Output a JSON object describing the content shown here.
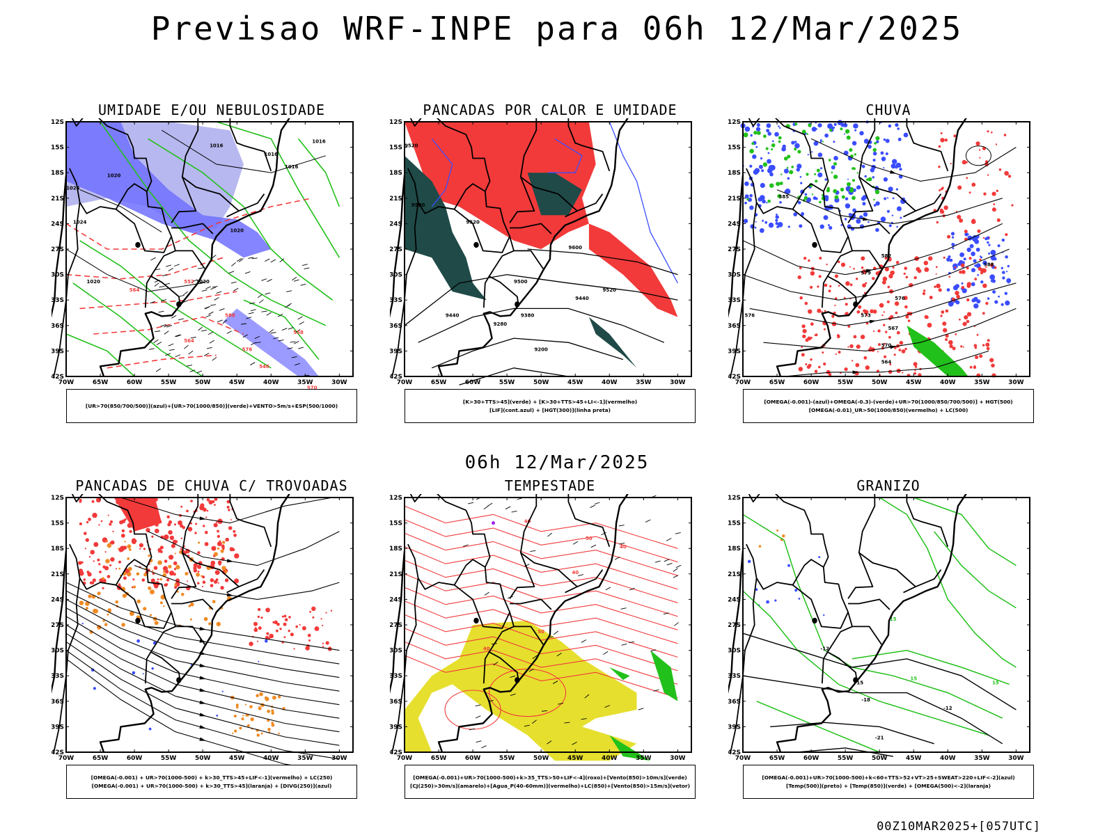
{
  "title": "Previsao WRF-INPE  para 06h 12/Mar/2025",
  "mid_title": "06h 12/Mar/2025",
  "run_stamp": "00Z10MAR2025+[057UTC]",
  "axes": {
    "lat_labels": [
      "12S",
      "15S",
      "18S",
      "21S",
      "24S",
      "27S",
      "30S",
      "33S",
      "36S",
      "39S",
      "42S"
    ],
    "lon_labels": [
      "70W",
      "65W",
      "60W",
      "55W",
      "50W",
      "45W",
      "40W",
      "35W",
      "30W"
    ]
  },
  "colors": {
    "blue": "#3a4dff",
    "lightblue": "#b8b8f0",
    "midblue": "#7070ff",
    "green": "#22c01a",
    "red": "#f23a3a",
    "darkteal": "#1f4a48",
    "orange": "#f08a24",
    "yellow": "#e6df2e",
    "purple": "#a020f0"
  },
  "panels": [
    {
      "title": "UMIDADE E/OU NEBULOSIDADE",
      "legend": [
        "[UR>70(850/700/500)](azul)+[UR>70(1000/850)](verde)+VENTO>5m/s+ESP(500/1000)"
      ],
      "contour_labels": [
        "1016",
        "1016",
        "1016",
        "1016",
        "1020",
        "1024",
        "1024",
        "1020",
        "1020",
        "1020",
        "564",
        "558",
        "546",
        "570",
        "576",
        "588",
        "564",
        "552"
      ]
    },
    {
      "title": "PANCADAS POR CALOR E UMIDADE",
      "legend": [
        "[K>30+TTS>45](verde) + [K>30+TTS>45+LI<-1](vermelho)",
        "[LIF](cont.azul) + [HGT(300)](linha preta)"
      ],
      "contour_labels": [
        "9520",
        "9500",
        "9520",
        "9500",
        "9440",
        "9380",
        "9280",
        "9200",
        "9520",
        "9440",
        "9600"
      ]
    },
    {
      "title": "CHUVA",
      "legend": [
        "[OMEGA(-0.001)-(azul)+OMEGA(-0.3)-(verde)+UR>70(1000/850/700/500)] + HGT(500)",
        "[OMEGA(-0.01)_UR>50(1000/850)(vermelho) + LC(500)"
      ],
      "contour_labels": [
        "585",
        "582",
        "579",
        "576",
        "573",
        "570",
        "567",
        "564",
        "588",
        "576"
      ]
    },
    {
      "title": "PANCADAS DE CHUVA C/ TROVOADAS",
      "legend": [
        "[OMEGA(-0.001) + UR>70(1000-500) + k>30_TTS>45+LIF<-1](vermelho) + LC(250)",
        "[OMEGA(-0.001) + UR>70(1000-500) + k>30_TTS>45](laranja) + [DIVG(250)](azul)"
      ],
      "contour_labels": []
    },
    {
      "title": "TEMPESTADE",
      "legend": [
        "[OMEGA(-0.001)+UR>70(1000-500)+k>35_TTS>50+LIF<-4](roxo)+[Vento(850)>10m/s](verde)",
        "[CJ(250)>30m/s](amarelo)+[Agua_P(40-60mm)](vermelho)+LC(850)+[Vento(850)>15m/s](vetor)"
      ],
      "contour_labels": [
        "40",
        "40",
        "50",
        "40",
        "40",
        "50"
      ]
    },
    {
      "title": "GRANIZO",
      "legend": [
        "[OMEGA(-0.001)+UR>70(1000-500)+k<60+TTS>52+VT>25+SWEAT>220+LIF<-2](azul)",
        "[Temp(500)](preto) + [Temp(850)](verde) + [OMEGA(500)<-2](laranja)"
      ],
      "contour_labels": [
        "-12",
        "-15",
        "-18",
        "-21",
        "-12",
        "15",
        "15",
        "15"
      ]
    }
  ]
}
